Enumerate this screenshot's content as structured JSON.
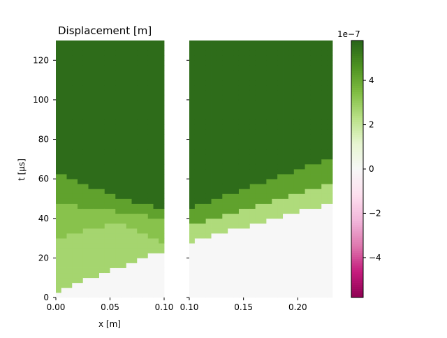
{
  "chart_data": {
    "type": "heatmap",
    "title": "Displacement [m]",
    "ylabel": "t [µs]",
    "xlabel": "x [m]",
    "ylim": [
      0,
      130
    ],
    "colormap": "PiYG",
    "panels": [
      {
        "name": "left",
        "xlim": [
          0,
          0.1
        ],
        "xticks": [
          "0.00",
          "0.05",
          "0.10"
        ],
        "xtick_values": [
          0,
          0.05,
          0.1
        ],
        "nx": 20
      },
      {
        "name": "right",
        "xlim": [
          0.1,
          0.232
        ],
        "xticks": [
          "0.10",
          "0.15",
          "0.20"
        ],
        "xtick_values": [
          0.1,
          0.15,
          0.2
        ],
        "nx": 26
      }
    ],
    "yticks": [
      "0",
      "20",
      "40",
      "60",
      "80",
      "100",
      "120"
    ],
    "ytick_values": [
      0,
      20,
      40,
      60,
      80,
      100,
      120
    ],
    "colorbar": {
      "range": [
        -5.8,
        5.8
      ],
      "multiplier": "1e−7",
      "ticks": [
        "−4",
        "−2",
        "0",
        "2",
        "4"
      ],
      "tick_values": [
        -4,
        -2,
        0,
        2,
        4
      ]
    },
    "levels": {
      "zero": 0.0,
      "pale": 1.6,
      "light": 2.7,
      "mid": 4.2,
      "dark": 5.6
    },
    "wave_fronts": {
      "left_first_arrival_t": [
        [
          0,
          3
        ],
        [
          0.1,
          24
        ]
      ],
      "left_reflection_t": [
        [
          0,
          30
        ],
        [
          0.055,
          38
        ],
        [
          0.1,
          28
        ]
      ],
      "left_plateau_t": [
        [
          0,
          48
        ],
        [
          0.1,
          40
        ]
      ],
      "left_settle_t": [
        [
          0,
          63
        ],
        [
          0.06,
          50
        ],
        [
          0.1,
          45
        ]
      ],
      "right_first_arrival_t": [
        [
          0.1,
          28
        ],
        [
          0.232,
          48
        ]
      ],
      "right_second_t": [
        [
          0.1,
          36
        ],
        [
          0.232,
          58
        ]
      ],
      "right_settle_t": [
        [
          0.1,
          45
        ],
        [
          0.232,
          71
        ]
      ]
    }
  }
}
